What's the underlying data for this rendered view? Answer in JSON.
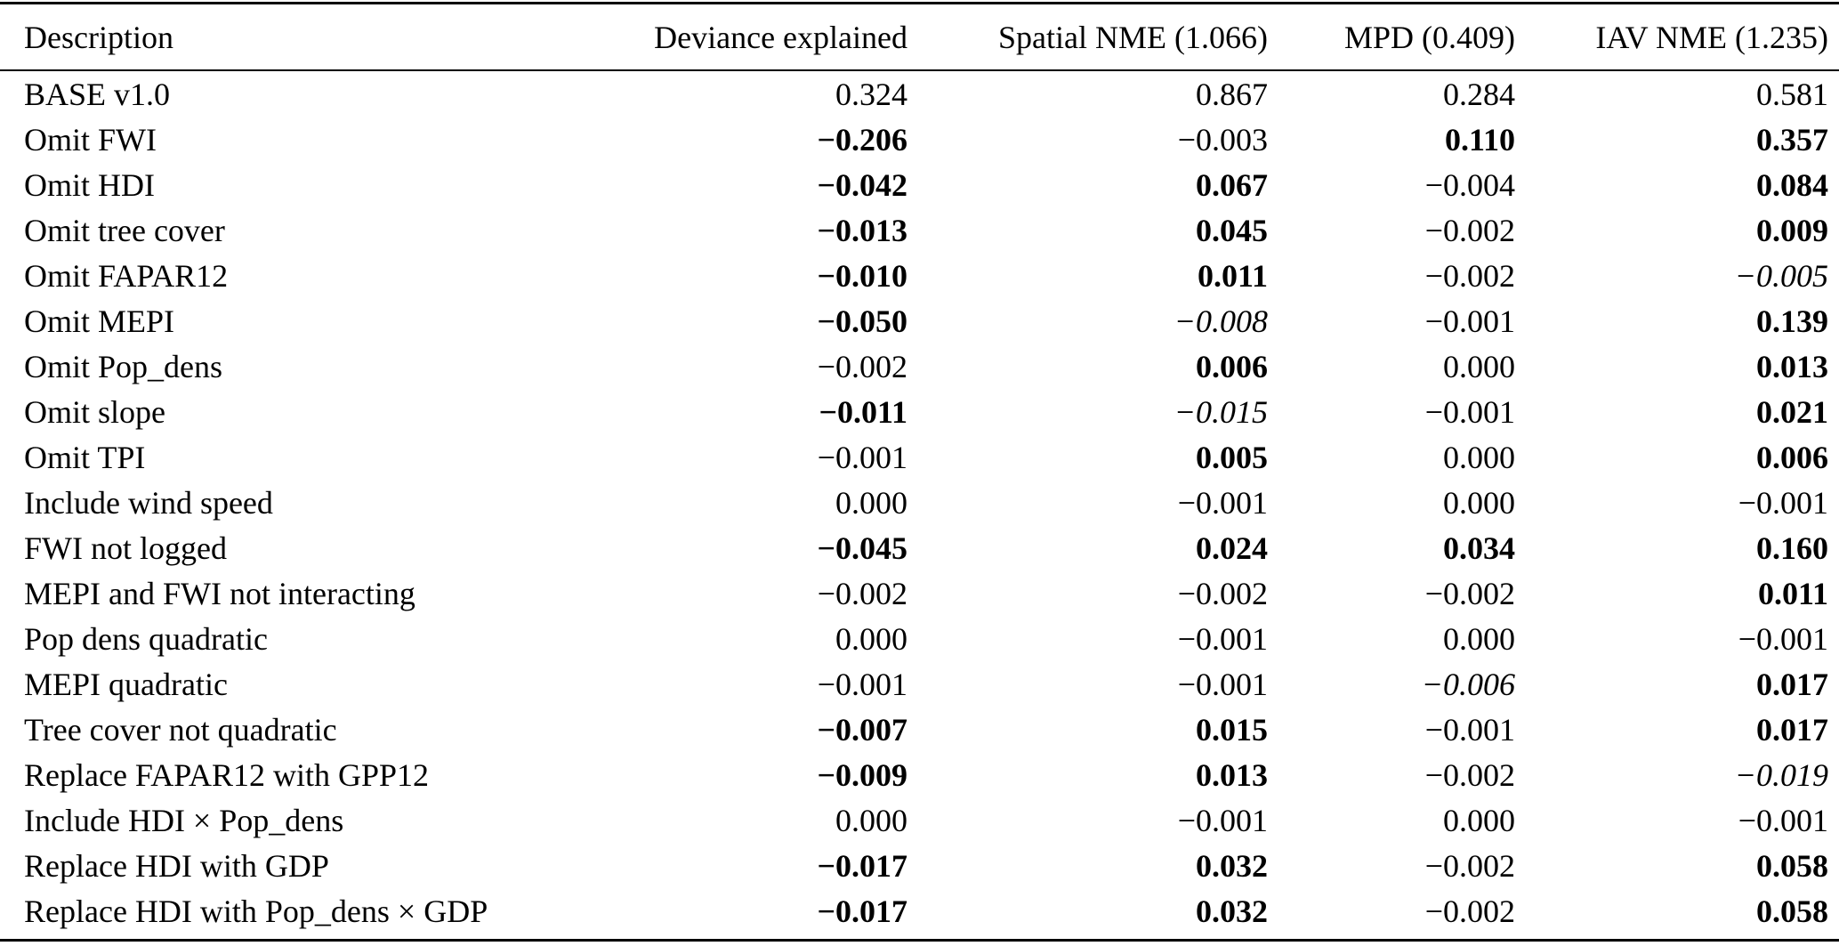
{
  "colors": {
    "text": "#000000",
    "background": "#ffffff",
    "rule": "#000000"
  },
  "table": {
    "columns": [
      "Description",
      "Deviance explained",
      "Spatial NME (1.066)",
      "MPD (0.409)",
      "IAV NME (1.235)"
    ],
    "rows": [
      {
        "description": "BASE v1.0",
        "values": [
          {
            "text": "0.324",
            "style": "normal"
          },
          {
            "text": "0.867",
            "style": "normal"
          },
          {
            "text": "0.284",
            "style": "normal"
          },
          {
            "text": "0.581",
            "style": "normal"
          }
        ]
      },
      {
        "description": "Omit FWI",
        "values": [
          {
            "text": "−0.206",
            "style": "bold"
          },
          {
            "text": "−0.003",
            "style": "normal"
          },
          {
            "text": "0.110",
            "style": "bold"
          },
          {
            "text": "0.357",
            "style": "bold"
          }
        ]
      },
      {
        "description": "Omit HDI",
        "values": [
          {
            "text": "−0.042",
            "style": "bold"
          },
          {
            "text": "0.067",
            "style": "bold"
          },
          {
            "text": "−0.004",
            "style": "normal"
          },
          {
            "text": "0.084",
            "style": "bold"
          }
        ]
      },
      {
        "description": "Omit tree cover",
        "values": [
          {
            "text": "−0.013",
            "style": "bold"
          },
          {
            "text": "0.045",
            "style": "bold"
          },
          {
            "text": "−0.002",
            "style": "normal"
          },
          {
            "text": "0.009",
            "style": "bold"
          }
        ]
      },
      {
        "description": "Omit FAPAR12",
        "values": [
          {
            "text": "−0.010",
            "style": "bold"
          },
          {
            "text": "0.011",
            "style": "bold"
          },
          {
            "text": "−0.002",
            "style": "normal"
          },
          {
            "text": "−0.005",
            "style": "italic"
          }
        ]
      },
      {
        "description": "Omit MEPI",
        "values": [
          {
            "text": "−0.050",
            "style": "bold"
          },
          {
            "text": "−0.008",
            "style": "italic"
          },
          {
            "text": "−0.001",
            "style": "normal"
          },
          {
            "text": "0.139",
            "style": "bold"
          }
        ]
      },
      {
        "description": "Omit Pop_dens",
        "values": [
          {
            "text": "−0.002",
            "style": "normal"
          },
          {
            "text": "0.006",
            "style": "bold"
          },
          {
            "text": "0.000",
            "style": "normal"
          },
          {
            "text": "0.013",
            "style": "bold"
          }
        ]
      },
      {
        "description": "Omit slope",
        "values": [
          {
            "text": "−0.011",
            "style": "bold"
          },
          {
            "text": "−0.015",
            "style": "italic"
          },
          {
            "text": "−0.001",
            "style": "normal"
          },
          {
            "text": "0.021",
            "style": "bold"
          }
        ]
      },
      {
        "description": "Omit TPI",
        "values": [
          {
            "text": "−0.001",
            "style": "normal"
          },
          {
            "text": "0.005",
            "style": "bold"
          },
          {
            "text": "0.000",
            "style": "normal"
          },
          {
            "text": "0.006",
            "style": "bold"
          }
        ]
      },
      {
        "description": "Include wind speed",
        "values": [
          {
            "text": "0.000",
            "style": "normal"
          },
          {
            "text": "−0.001",
            "style": "normal"
          },
          {
            "text": "0.000",
            "style": "normal"
          },
          {
            "text": "−0.001",
            "style": "normal"
          }
        ]
      },
      {
        "description": "FWI not logged",
        "values": [
          {
            "text": "−0.045",
            "style": "bold"
          },
          {
            "text": "0.024",
            "style": "bold"
          },
          {
            "text": "0.034",
            "style": "bold"
          },
          {
            "text": "0.160",
            "style": "bold"
          }
        ]
      },
      {
        "description": "MEPI and FWI not interacting",
        "values": [
          {
            "text": "−0.002",
            "style": "normal"
          },
          {
            "text": "−0.002",
            "style": "normal"
          },
          {
            "text": "−0.002",
            "style": "normal"
          },
          {
            "text": "0.011",
            "style": "bold"
          }
        ]
      },
      {
        "description": "Pop dens quadratic",
        "values": [
          {
            "text": "0.000",
            "style": "normal"
          },
          {
            "text": "−0.001",
            "style": "normal"
          },
          {
            "text": "0.000",
            "style": "normal"
          },
          {
            "text": "−0.001",
            "style": "normal"
          }
        ]
      },
      {
        "description": "MEPI quadratic",
        "values": [
          {
            "text": "−0.001",
            "style": "normal"
          },
          {
            "text": "−0.001",
            "style": "normal"
          },
          {
            "text": "−0.006",
            "style": "italic"
          },
          {
            "text": "0.017",
            "style": "bold"
          }
        ]
      },
      {
        "description": "Tree cover not quadratic",
        "values": [
          {
            "text": "−0.007",
            "style": "bold"
          },
          {
            "text": "0.015",
            "style": "bold"
          },
          {
            "text": "−0.001",
            "style": "normal"
          },
          {
            "text": "0.017",
            "style": "bold"
          }
        ]
      },
      {
        "description": "Replace FAPAR12 with GPP12",
        "values": [
          {
            "text": "−0.009",
            "style": "bold"
          },
          {
            "text": "0.013",
            "style": "bold"
          },
          {
            "text": "−0.002",
            "style": "normal"
          },
          {
            "text": "−0.019",
            "style": "italic"
          }
        ]
      },
      {
        "description": "Include HDI × Pop_dens",
        "values": [
          {
            "text": "0.000",
            "style": "normal"
          },
          {
            "text": "−0.001",
            "style": "normal"
          },
          {
            "text": "0.000",
            "style": "normal"
          },
          {
            "text": "−0.001",
            "style": "normal"
          }
        ]
      },
      {
        "description": "Replace HDI with GDP",
        "values": [
          {
            "text": "−0.017",
            "style": "bold"
          },
          {
            "text": "0.032",
            "style": "bold"
          },
          {
            "text": "−0.002",
            "style": "normal"
          },
          {
            "text": "0.058",
            "style": "bold"
          }
        ]
      },
      {
        "description": "Replace HDI with Pop_dens × GDP",
        "values": [
          {
            "text": "−0.017",
            "style": "bold"
          },
          {
            "text": "0.032",
            "style": "bold"
          },
          {
            "text": "−0.002",
            "style": "normal"
          },
          {
            "text": "0.058",
            "style": "bold"
          }
        ]
      }
    ]
  }
}
